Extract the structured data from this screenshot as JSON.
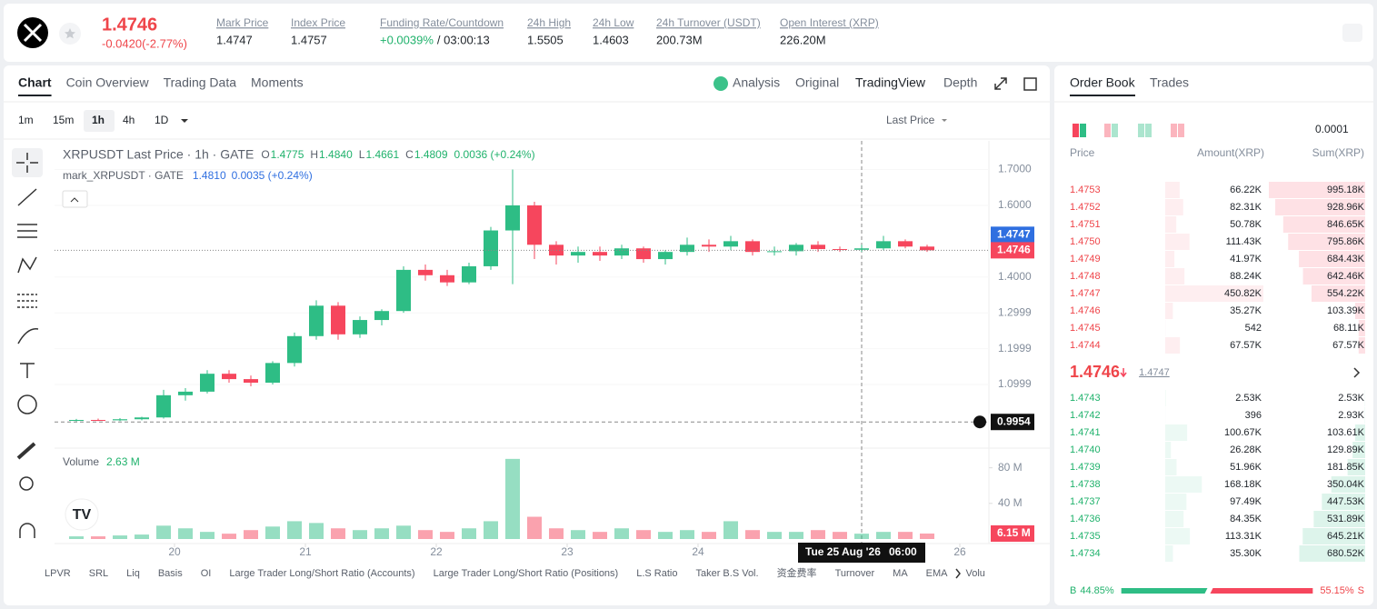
{
  "header": {
    "price": "1.4746",
    "change": "-0.0420(-2.77%)",
    "stats": [
      {
        "label": "Mark Price",
        "value": "1.4747"
      },
      {
        "label": "Index Price",
        "value": "1.4757"
      },
      {
        "label": "Funding Rate/Countdown",
        "value": "+0.0039%",
        "countdown": "/ 03:00:13"
      },
      {
        "label": "24h High",
        "value": "1.5505"
      },
      {
        "label": "24h Low",
        "value": "1.4603"
      },
      {
        "label": "24h Turnover (USDT)",
        "value": "200.73M"
      },
      {
        "label": "Open Interest (XRP)",
        "value": "226.20M"
      }
    ]
  },
  "chart_tabs": [
    "Chart",
    "Coin Overview",
    "Trading Data",
    "Moments"
  ],
  "view_tabs": [
    "Analysis",
    "Original",
    "TradingView",
    "Depth"
  ],
  "intervals": [
    "1m",
    "15m",
    "1h",
    "4h",
    "1D"
  ],
  "price_source": "Last Price",
  "chart_data": {
    "type": "candlestick",
    "title": "XRPUSDT Last Price · 1h · GATE",
    "legend": [
      {
        "key": "O",
        "value": "1.4775"
      },
      {
        "key": "H",
        "value": "1.4840"
      },
      {
        "key": "L",
        "value": "1.4661"
      },
      {
        "key": "C",
        "value": "1.4809"
      }
    ],
    "change": "0.0036 (+0.24%)",
    "mark_title": "mark_XRPUSDT · GATE",
    "mark_value": "1.4810",
    "mark_change": "0.0035 (+0.24%)",
    "up_color": "#2ebd85",
    "down_color": "#f6465d",
    "x": [
      "2026-08-19T04:00",
      "2026-08-19T08:00",
      "2026-08-19T12:00",
      "2026-08-19T16:00",
      "2026-08-19T20:00",
      "2026-08-20T00:00",
      "2026-08-20T04:00",
      "2026-08-20T08:00",
      "2026-08-20T12:00",
      "2026-08-20T16:00",
      "2026-08-20T20:00",
      "2026-08-21T00:00",
      "2026-08-21T04:00",
      "2026-08-21T08:00",
      "2026-08-21T12:00",
      "2026-08-21T16:00",
      "2026-08-21T20:00",
      "2026-08-22T00:00",
      "2026-08-22T04:00",
      "2026-08-22T08:00",
      "2026-08-22T12:00",
      "2026-08-22T16:00",
      "2026-08-22T20:00",
      "2026-08-23T00:00",
      "2026-08-23T04:00",
      "2026-08-23T08:00",
      "2026-08-23T12:00",
      "2026-08-23T16:00",
      "2026-08-23T20:00",
      "2026-08-24T00:00",
      "2026-08-24T04:00",
      "2026-08-24T08:00",
      "2026-08-24T12:00",
      "2026-08-24T16:00",
      "2026-08-24T20:00",
      "2026-08-25T00:00",
      "2026-08-25T04:00",
      "2026-08-25T08:00",
      "2026-08-25T12:00",
      "2026-08-25T16:00"
    ],
    "open": [
      1.0,
      1.001,
      1.0,
      1.003,
      1.008,
      1.07,
      1.08,
      1.13,
      1.115,
      1.105,
      1.16,
      1.235,
      1.32,
      1.24,
      1.28,
      1.305,
      1.42,
      1.405,
      1.385,
      1.43,
      1.53,
      1.6,
      1.49,
      1.46,
      1.47,
      1.46,
      1.48,
      1.45,
      1.47,
      1.49,
      1.485,
      1.5,
      1.47,
      1.472,
      1.49,
      1.478,
      1.476,
      1.48,
      1.5,
      1.485
    ],
    "high": [
      1.004,
      1.005,
      1.006,
      1.01,
      1.085,
      1.09,
      1.14,
      1.14,
      1.125,
      1.165,
      1.245,
      1.335,
      1.33,
      1.29,
      1.31,
      1.43,
      1.435,
      1.42,
      1.44,
      1.54,
      1.7,
      1.61,
      1.5,
      1.485,
      1.485,
      1.49,
      1.485,
      1.475,
      1.51,
      1.505,
      1.515,
      1.505,
      1.485,
      1.495,
      1.5,
      1.485,
      1.49,
      1.515,
      1.505,
      1.49
    ],
    "low": [
      0.997,
      0.998,
      0.998,
      1.0,
      1.005,
      1.055,
      1.075,
      1.105,
      1.095,
      1.1,
      1.15,
      1.225,
      1.225,
      1.23,
      1.265,
      1.3,
      1.39,
      1.375,
      1.38,
      1.42,
      1.38,
      1.45,
      1.435,
      1.44,
      1.445,
      1.45,
      1.44,
      1.435,
      1.46,
      1.47,
      1.475,
      1.46,
      1.46,
      1.46,
      1.47,
      1.47,
      1.47,
      1.475,
      1.48,
      1.47
    ],
    "close": [
      1.001,
      1.0,
      1.003,
      1.008,
      1.07,
      1.08,
      1.13,
      1.115,
      1.105,
      1.16,
      1.235,
      1.32,
      1.24,
      1.28,
      1.305,
      1.42,
      1.405,
      1.385,
      1.43,
      1.53,
      1.6,
      1.49,
      1.46,
      1.47,
      1.46,
      1.48,
      1.45,
      1.47,
      1.49,
      1.485,
      1.5,
      1.47,
      1.472,
      1.49,
      1.478,
      1.476,
      1.48,
      1.5,
      1.485,
      1.4746
    ],
    "volume": [
      3000000,
      3000000,
      4000000,
      5000000,
      15000000,
      12000000,
      8000000,
      6000000,
      10000000,
      14000000,
      20000000,
      18000000,
      12000000,
      10000000,
      12000000,
      15000000,
      10000000,
      8000000,
      12000000,
      20000000,
      90000000,
      25000000,
      12000000,
      10000000,
      8000000,
      12000000,
      10000000,
      8000000,
      10000000,
      8000000,
      20000000,
      10000000,
      8000000,
      8000000,
      10000000,
      8000000,
      6000000,
      8000000,
      8000000,
      6150000
    ],
    "xticks": [
      {
        "value": "2026-08-20T00:00",
        "label": "20"
      },
      {
        "value": "2026-08-21T00:00",
        "label": "21"
      },
      {
        "value": "2026-08-22T00:00",
        "label": "22"
      },
      {
        "value": "2026-08-23T00:00",
        "label": "23"
      },
      {
        "value": "2026-08-24T00:00",
        "label": "24"
      },
      {
        "value": "2026-08-26T00:00",
        "label": "26"
      }
    ],
    "ylim": [
      0.93,
      1.78
    ],
    "yticks": [
      {
        "value": 1.7,
        "label": "1.7000"
      },
      {
        "value": 1.6,
        "label": "1.6000"
      },
      {
        "value": 1.4,
        "label": "1.4000"
      },
      {
        "value": 1.2999,
        "label": "1.2999"
      },
      {
        "value": 1.1999,
        "label": "1.1999"
      },
      {
        "value": 1.0999,
        "label": "1.0999"
      }
    ],
    "price_markers": [
      {
        "value": 1.4747,
        "label": "1.4747",
        "color": "#2f6fe0"
      },
      {
        "value": 1.4746,
        "label": "1.4746",
        "color": "#f6465d"
      },
      {
        "value": 0.9954,
        "label": "0.9954",
        "color": "#111111"
      }
    ],
    "volume_title": "Volume",
    "volume_value": "2.63 M",
    "volume_ylim": [
      0,
      97000000
    ],
    "volume_ticks": [
      {
        "value": 80000000,
        "label": "80 M"
      },
      {
        "value": 40000000,
        "label": "40 M"
      }
    ],
    "volume_marker": {
      "value": 6150000,
      "label": "6.15 M"
    },
    "crosshair": {
      "x": "2026-08-25T06:00",
      "label": "Tue 25 Aug '26",
      "time": "06:00"
    }
  },
  "indicators": [
    "LPVR",
    "SRL",
    "Liq",
    "Basis",
    "OI",
    "Large Trader Long/Short Ratio (Accounts)",
    "Large Trader Long/Short Ratio (Positions)",
    "L.S Ratio",
    "Taker B.S Vol.",
    "资金费率",
    "Turnover",
    "MA",
    "EMA",
    "Volu"
  ],
  "order_book": {
    "tabs": [
      "Order Book",
      "Trades"
    ],
    "precision": "0.0001",
    "columns": [
      "Price",
      "Amount(XRP)",
      "Sum(XRP)"
    ],
    "asks": [
      [
        "1.4753",
        "66.22K",
        "995.18K"
      ],
      [
        "1.4752",
        "82.31K",
        "928.96K"
      ],
      [
        "1.4751",
        "50.78K",
        "846.65K"
      ],
      [
        "1.4750",
        "111.43K",
        "795.86K"
      ],
      [
        "1.4749",
        "41.97K",
        "684.43K"
      ],
      [
        "1.4748",
        "88.24K",
        "642.46K"
      ],
      [
        "1.4747",
        "450.82K",
        "554.22K"
      ],
      [
        "1.4746",
        "35.27K",
        "103.39K"
      ],
      [
        "1.4745",
        "542",
        "68.11K"
      ],
      [
        "1.4744",
        "67.57K",
        "67.57K"
      ]
    ],
    "mid_price": "1.4746",
    "mark_price": "1.4747",
    "bids": [
      [
        "1.4743",
        "2.53K",
        "2.53K"
      ],
      [
        "1.4742",
        "396",
        "2.93K"
      ],
      [
        "1.4741",
        "100.67K",
        "103.61K"
      ],
      [
        "1.4740",
        "26.28K",
        "129.89K"
      ],
      [
        "1.4739",
        "51.96K",
        "181.85K"
      ],
      [
        "1.4738",
        "168.18K",
        "350.04K"
      ],
      [
        "1.4737",
        "97.49K",
        "447.53K"
      ],
      [
        "1.4736",
        "84.35K",
        "531.89K"
      ],
      [
        "1.4735",
        "113.31K",
        "645.21K"
      ],
      [
        "1.4734",
        "35.30K",
        "680.52K"
      ]
    ],
    "buy_label": "B",
    "buy_ratio": 44.85,
    "buy_ratio_label": "44.85%",
    "sell_ratio": 55.15,
    "sell_ratio_label": "55.15%",
    "sell_label": "S"
  }
}
